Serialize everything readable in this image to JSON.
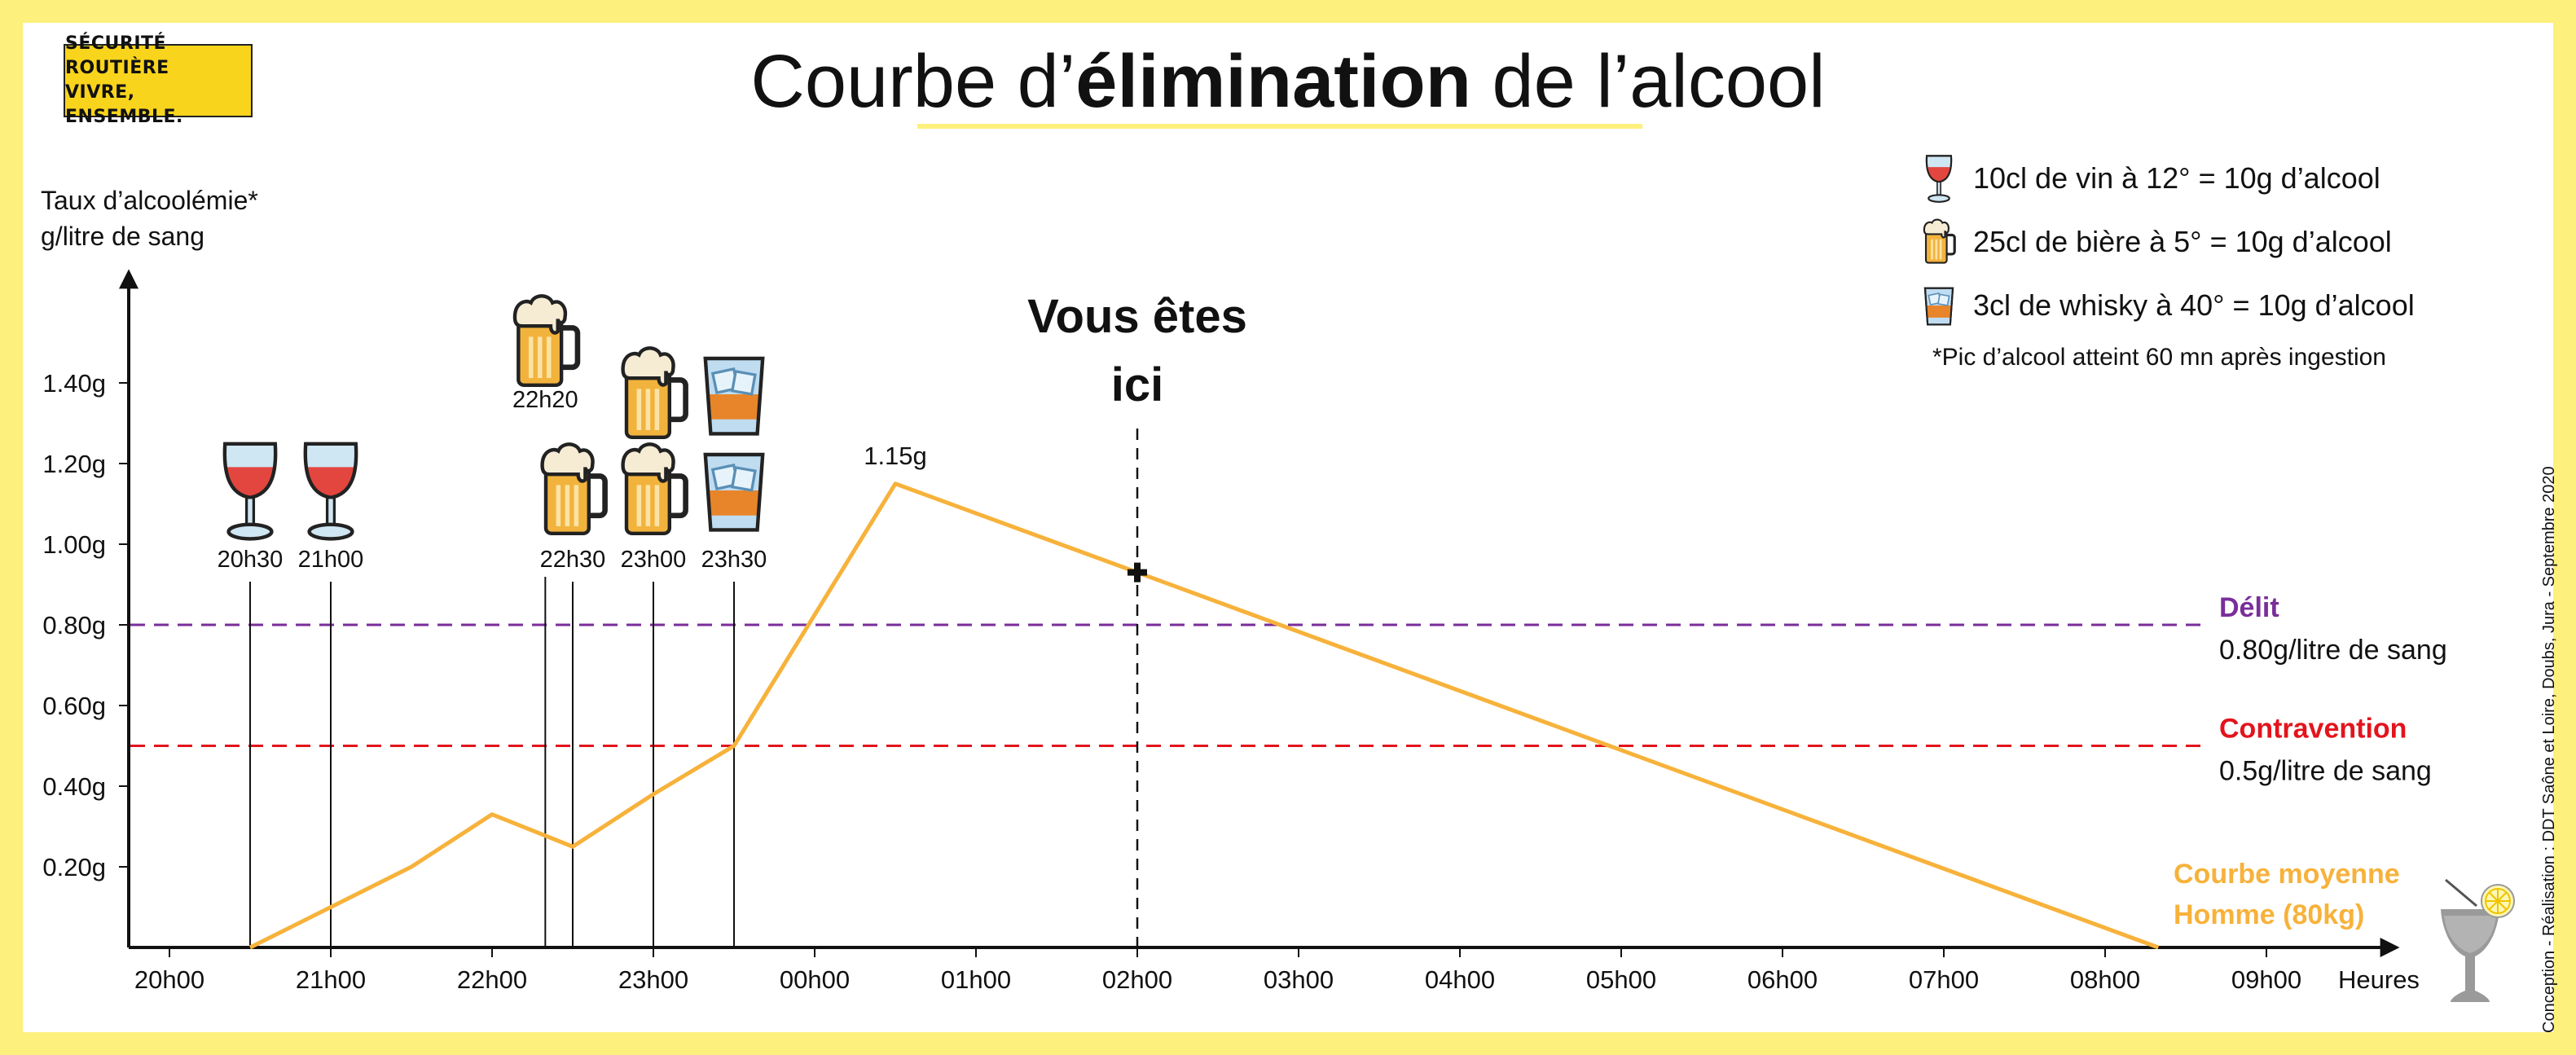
{
  "logo": {
    "line1": "SÉCURITÉ ROUTIÈRE",
    "line2": "VIVRE, ENSEMBLE."
  },
  "title": {
    "before": "Courbe d’",
    "bold": "élimination",
    "after": " de l’alcool"
  },
  "credit": "Conception - Réalisation : DDT Saône et Loire, Doubs, Jura - Septembre 2020",
  "legend": {
    "items": [
      {
        "icon": "wine-glass-icon",
        "label": "10cl de vin à 12° = 10g d’alcool"
      },
      {
        "icon": "beer-mug-icon",
        "label": "25cl de bière à 5° = 10g d’alcool"
      },
      {
        "icon": "whisky-glass-icon",
        "label": "3cl de whisky à 40° = 10g d’alcool"
      }
    ],
    "note": "*Pic d’alcool atteint 60 mn après ingestion"
  },
  "colors": {
    "background": "#fdf07c",
    "curve": "#f7b23b",
    "delit": "#7a2e9a",
    "contravention": "#e3141c",
    "axis": "#111111"
  },
  "chart_data": {
    "type": "line",
    "ylabel_line1": "Taux d’alcoolémie*",
    "ylabel_line2": "g/litre de sang",
    "xlabel": "Heures",
    "x_ticks": [
      "20h00",
      "21h00",
      "22h00",
      "23h00",
      "00h00",
      "01h00",
      "02h00",
      "03h00",
      "04h00",
      "05h00",
      "06h00",
      "07h00",
      "08h00",
      "09h00"
    ],
    "y_ticks": [
      "0.20g",
      "0.40g",
      "0.60g",
      "0.80g",
      "1.00g",
      "1.20g",
      "1.40g"
    ],
    "ylim": [
      0,
      1.6
    ],
    "series": [
      {
        "name_line1": "Courbe moyenne",
        "name_line2": "Homme (80kg)",
        "x_hours": [
          20.5,
          21.0,
          21.5,
          22.0,
          22.5,
          23.0,
          23.5,
          24.5,
          26.0,
          32.33
        ],
        "y": [
          0,
          0.1,
          0.2,
          0.33,
          0.25,
          0.38,
          0.5,
          1.15,
          0.93,
          0
        ]
      }
    ],
    "peak_label": "1.15g",
    "thresholds": [
      {
        "title": "Délit",
        "sub": "0.80g/litre de sang",
        "value": 0.8,
        "color": "#7a2e9a"
      },
      {
        "title": "Contravention",
        "sub": "0.5g/litre de sang",
        "value": 0.5,
        "color": "#e3141c"
      }
    ],
    "current": {
      "line1": "Vous êtes",
      "line2": "ici",
      "x_hours": 26.0,
      "y": 0.93
    },
    "drinks": [
      {
        "icon": "wine-glass-icon",
        "time": "20h30",
        "x_hours": 20.5,
        "label": "20h30"
      },
      {
        "icon": "wine-glass-icon",
        "time": "21h00",
        "x_hours": 21.0,
        "label": "21h00"
      },
      {
        "icon": "beer-mug-icon",
        "time": "22h20",
        "x_hours": 22.33,
        "label": "22h20"
      },
      {
        "icon": "beer-mug-icon",
        "time": "22h30",
        "x_hours": 22.5,
        "label": "22h30"
      },
      {
        "icon": "beer-mug-icon",
        "time": "23h00",
        "x_hours": 23.0,
        "label": "23h00"
      },
      {
        "icon": "beer-mug-icon",
        "time": "23h00",
        "x_hours": 23.0,
        "label": ""
      },
      {
        "icon": "whisky-glass-icon",
        "time": "23h30",
        "x_hours": 23.5,
        "label": "23h30"
      },
      {
        "icon": "whisky-glass-icon",
        "time": "23h30",
        "x_hours": 23.5,
        "label": ""
      }
    ]
  }
}
